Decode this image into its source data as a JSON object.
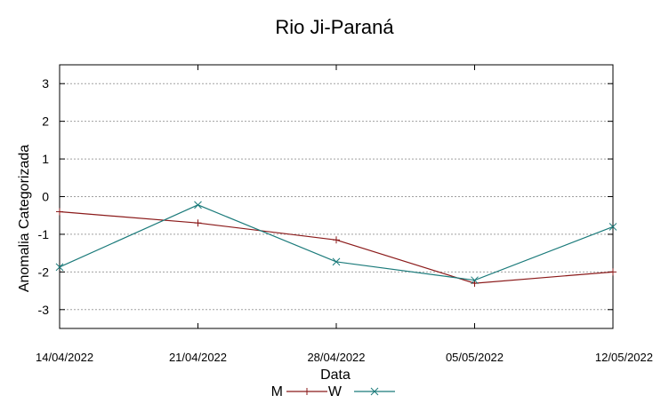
{
  "chart_data": {
    "type": "line",
    "title": "Rio Ji-Paraná",
    "xlabel": "Data",
    "ylabel": "Anomalia Categorizada",
    "x_ticks": [
      "14/04/2022",
      "21/04/2022",
      "28/04/2022",
      "05/05/2022",
      "12/05/2022"
    ],
    "y_ticks": [
      3,
      2,
      1,
      0,
      -1,
      -2,
      -3
    ],
    "ylim": [
      -3.5,
      3.5
    ],
    "grid": true,
    "legend_position": "bottom",
    "series": [
      {
        "name": "M",
        "color": "#8b1a1a",
        "marker": "plus",
        "values": [
          -0.4,
          -0.7,
          -1.15,
          -2.3,
          -2.0
        ]
      },
      {
        "name": "W",
        "color": "#1a7a7a",
        "marker": "cross",
        "values": [
          -1.87,
          -0.22,
          -1.73,
          -2.22,
          -0.8
        ]
      }
    ]
  }
}
